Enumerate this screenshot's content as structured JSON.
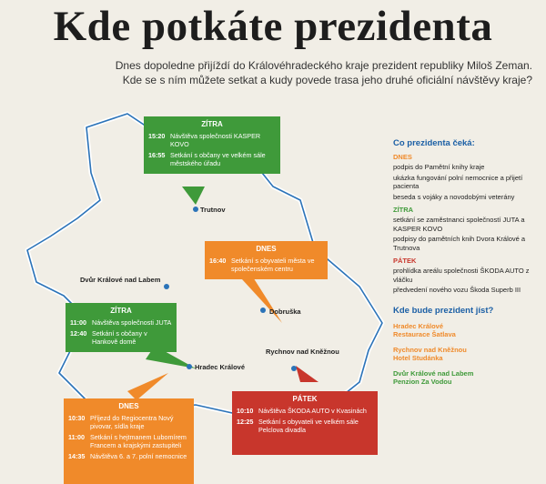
{
  "title": "Kde potkáte prezidenta",
  "subtitle": [
    "Dnes dopoledne přijíždí do Královéhradeckého kraje prezident republiky Miloš Zeman.",
    "Kde se s ním můžete setkat a kudy povede trasa jeho druhé oficiální návštěvy kraje?"
  ],
  "map": {
    "cities": {
      "trutnov": "Trutnov",
      "dvur": "Dvůr Králové nad Labem",
      "dobruska": "Dobruška",
      "hradec": "Hradec Králové",
      "rychnov": "Rychnov nad Kněžnou"
    },
    "boxes": {
      "zitra1": {
        "header": "ZÍTRA",
        "items": [
          {
            "time": "15:20",
            "text": "Návštěva společnosti KASPER KOVO"
          },
          {
            "time": "16:55",
            "text": "Setkání s občany ve velkém sále městského úřadu"
          }
        ]
      },
      "dnes1": {
        "header": "DNES",
        "items": [
          {
            "time": "16:40",
            "text": "Setkání s obyvateli města ve společenském centru"
          }
        ]
      },
      "zitra2": {
        "header": "ZÍTRA",
        "items": [
          {
            "time": "11:00",
            "text": "Návštěva společnosti JUTA"
          },
          {
            "time": "12:40",
            "text": "Setkání s občany v Hankově domě"
          }
        ]
      },
      "dnes2": {
        "header": "DNES",
        "items": [
          {
            "time": "10:30",
            "text": "Příjezd do Regiocentra Nový pivovar, sídla kraje"
          },
          {
            "time": "11:00",
            "text": "Setkání s hejtmanem Lubomírem Francem a krajskými zastupiteli"
          },
          {
            "time": "14:35",
            "text": "Návštěva 6. a 7. polní nemocnice"
          }
        ]
      },
      "patek": {
        "header": "PÁTEK",
        "items": [
          {
            "time": "10:10",
            "text": "Návštěva ŠKODA AUTO v Kvasinách"
          },
          {
            "time": "12:25",
            "text": "Setkání s obyvateli ve velkém sále Pelclova divadla"
          }
        ]
      }
    }
  },
  "sidebar": {
    "title": "Co prezidenta čeká:",
    "dnes_label": "DNES",
    "dnes_items": [
      "podpis do Pamětní knihy kraje",
      "ukázka fungování polní nemocnice a přijetí pacienta",
      "beseda s vojáky a novodobými veterány"
    ],
    "zitra_label": "ZÍTRA",
    "zitra_items": [
      "setkání se zaměstnanci společností JUTA a KASPER KOVO",
      "podpisy do pamětních knih Dvora Králové a Trutnova"
    ],
    "patek_label": "PÁTEK",
    "patek_items": [
      "prohlídka areálu společnosti ŠKODA AUTO z vláčku",
      "předvedení nového vozu Škoda Superb III"
    ],
    "eat_title": "Kde bude prezident jíst?",
    "eat": [
      {
        "line1": "Hradec Králové",
        "line2": "Restaurace Šatlava"
      },
      {
        "line1": "Rychnov nad Kněžnou",
        "line2": "Hotel Studánka"
      },
      {
        "line1": "Dvůr Králové nad Labem",
        "line2": "Penzion Za Vodou"
      }
    ]
  },
  "colors": {
    "green": "#3f9a3a",
    "orange": "#f08a2a",
    "red": "#c8362c",
    "blue": "#1b5fa5"
  }
}
